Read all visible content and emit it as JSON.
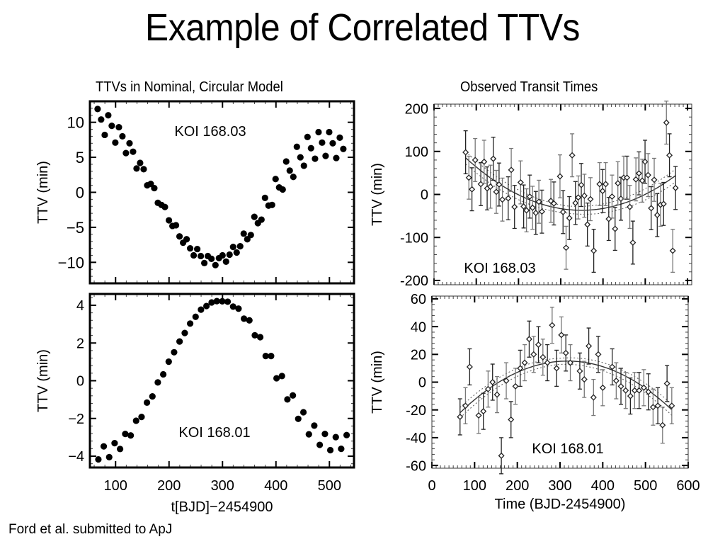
{
  "slide": {
    "title": "Example of Correlated TTVs",
    "left_heading": "TTVs in Nominal, Circular Model",
    "right_heading": "Observed Transit Times",
    "footer": "Ford et al. submitted to ApJ"
  },
  "chart_data": [
    {
      "id": "model-koi-168-03",
      "type": "scatter",
      "title": "",
      "annotation": "KOI 168.03",
      "xlabel": "",
      "ylabel": "TTV (min)",
      "xlim": [
        52,
        546
      ],
      "ylim": [
        -13,
        13
      ],
      "yticks": [
        -10,
        -5,
        0,
        5,
        10
      ],
      "ytick_labels": [
        "−10",
        "−5",
        "0",
        "5",
        "10"
      ],
      "xticks": [
        100,
        200,
        300,
        400,
        500
      ],
      "xtick_labels": [],
      "x": [
        66.4,
        73.0,
        79.7,
        86.3,
        92.9,
        99.5,
        106.2,
        112.8,
        119.4,
        126.1,
        132.7,
        139.3,
        145.9,
        152.6,
        159.2,
        165.8,
        172.4,
        179.1,
        185.7,
        192.3,
        199.8,
        206.4,
        213.0,
        219.6,
        226.3,
        232.9,
        239.5,
        246.1,
        252.8,
        259.4,
        266.0,
        272.6,
        279.3,
        286.8,
        293.4,
        300.0,
        306.6,
        313.2,
        319.9,
        326.5,
        333.1,
        339.7,
        346.4,
        353.0,
        359.6,
        366.2,
        372.9,
        379.5,
        386.1,
        392.7,
        399.3,
        406.0,
        412.6,
        419.2,
        425.8,
        432.5,
        439.1,
        445.7,
        452.3,
        459.0,
        465.6,
        473.1,
        479.7,
        486.3,
        492.9,
        499.6,
        506.2,
        512.8,
        519.4,
        526.0
      ],
      "y": [
        11.9,
        10.4,
        8.2,
        11.0,
        9.5,
        7.1,
        9.3,
        8.0,
        5.6,
        7.0,
        5.8,
        3.4,
        4.2,
        3.3,
        1.0,
        1.2,
        0.6,
        -1.5,
        -1.8,
        -2.1,
        -4.0,
        -4.8,
        -4.7,
        -6.3,
        -7.2,
        -6.7,
        -8.0,
        -9.0,
        -8.1,
        -9.1,
        -10.1,
        -9.1,
        -9.5,
        -10.4,
        -9.4,
        -9.0,
        -9.9,
        -8.9,
        -7.8,
        -8.6,
        -7.7,
        -5.9,
        -6.7,
        -6.1,
        -3.5,
        -4.4,
        -3.9,
        -0.8,
        -1.9,
        -1.8,
        1.9,
        0.7,
        0.4,
        4.4,
        3.1,
        2.2,
        6.5,
        5.0,
        3.8,
        7.9,
        6.3,
        4.8,
        8.6,
        7.1,
        5.2,
        8.6,
        7.0,
        4.9,
        7.8,
        6.2
      ]
    },
    {
      "id": "model-koi-168-01",
      "type": "scatter",
      "title": "",
      "annotation": "KOI 168.01",
      "xlabel": "t[BJD]−2454900",
      "ylabel": "TTV (min)",
      "xlim": [
        52,
        546
      ],
      "ylim": [
        -4.6,
        4.6
      ],
      "yticks": [
        -4,
        -2,
        0,
        2,
        4
      ],
      "ytick_labels": [
        "−4",
        "−2",
        "0",
        "2",
        "4"
      ],
      "xticks": [
        100,
        200,
        300,
        400,
        500
      ],
      "xtick_labels": [
        "100",
        "200",
        "300",
        "400",
        "500"
      ],
      "x": [
        67.8,
        77.9,
        88.1,
        98.2,
        108.4,
        118.1,
        128.3,
        138.4,
        148.6,
        158.7,
        168.9,
        179.0,
        189.2,
        199.4,
        209.5,
        219.7,
        229.4,
        239.5,
        249.7,
        259.8,
        270.0,
        279.7,
        289.4,
        299.6,
        309.7,
        319.9,
        330.0,
        340.2,
        350.3,
        360.5,
        370.6,
        380.8,
        390.9,
        401.1,
        411.2,
        421.4,
        431.6,
        441.7,
        451.4,
        461.6,
        471.7,
        481.9,
        491.6,
        501.7,
        511.9,
        522.0,
        532.2
      ],
      "y": [
        -4.17,
        -3.48,
        -4.05,
        -3.31,
        -3.62,
        -2.82,
        -2.9,
        -2.12,
        -1.92,
        -1.16,
        -0.83,
        -0.09,
        0.34,
        1.01,
        1.51,
        2.08,
        2.53,
        3.03,
        3.39,
        3.77,
        3.96,
        4.15,
        4.22,
        4.21,
        4.19,
        3.93,
        3.82,
        3.29,
        3.2,
        2.41,
        2.31,
        1.31,
        1.31,
        0.13,
        0.25,
        -0.99,
        -0.78,
        -2.02,
        -1.67,
        -2.84,
        -2.38,
        -3.4,
        -2.82,
        -3.68,
        -2.99,
        -3.61,
        -2.88
      ]
    },
    {
      "id": "observed-koi-168-03",
      "type": "scatter",
      "title": "",
      "annotation": "KOI 168.03",
      "xlabel": "",
      "ylabel": "TTV (min)",
      "xlim": [
        0,
        610
      ],
      "ylim": [
        -210,
        210
      ],
      "yticks": [
        -200,
        -100,
        0,
        100,
        200
      ],
      "ytick_labels": [
        "-200",
        "-100",
        "0",
        "100",
        "200"
      ],
      "xticks": [
        0,
        100,
        200,
        300,
        400,
        500,
        600
      ],
      "xtick_labels": [],
      "x": [
        74.8,
        82.5,
        89.8,
        97.5,
        110.8,
        118.6,
        125.8,
        133.5,
        140.2,
        147.4,
        154.0,
        161.8,
        175.6,
        182.8,
        190.6,
        205.0,
        212.2,
        218.9,
        226.6,
        233.3,
        241.0,
        248.2,
        255.4,
        276.6,
        283.8,
        298.2,
        305.4,
        312.6,
        320.4,
        327.0,
        334.8,
        341.4,
        348.6,
        355.9,
        363.1,
        370.3,
        378.1,
        391.9,
        399.1,
        406.4,
        413.6,
        421.4,
        428.6,
        435.2,
        442.4,
        449.1,
        456.8,
        463.5,
        470.7,
        477.9,
        485.1,
        492.9,
        499.5,
        506.7,
        514.0,
        521.2,
        528.4,
        536.2,
        543.4,
        550.1,
        557.3,
        565.1,
        571.7
      ],
      "y": [
        98,
        39,
        12,
        80,
        24,
        76,
        14,
        18,
        83,
        6,
        23,
        -12,
        -9,
        57,
        -29,
        28,
        -28,
        -37,
        -5,
        -31,
        -43,
        -17,
        -40,
        -15,
        -21,
        42,
        -41,
        -124,
        -55,
        91,
        -20,
        -7,
        22,
        -3,
        -70,
        -11,
        -131,
        24,
        8,
        24,
        -57,
        -5,
        -80,
        26,
        -10,
        39,
        39,
        -29,
        -112,
        35,
        49,
        32,
        76,
        45,
        -32,
        34,
        -48,
        -24,
        -22,
        167,
        91,
        -131,
        15
      ],
      "yerr": 50,
      "fit": {
        "type": "quadratic",
        "x": [
          75,
          315,
          572
        ],
        "y": [
          85,
          -35,
          44
        ],
        "band_lower_offset": 15,
        "band_upper_offset": 15
      }
    },
    {
      "id": "observed-koi-168-01",
      "type": "scatter",
      "title": "",
      "annotation": "KOI 168.01",
      "xlabel": "Time (BJD-2454900)",
      "ylabel": "TTV (min)",
      "xlim": [
        0,
        600
      ],
      "ylim": [
        -62,
        62
      ],
      "yticks": [
        -60,
        -40,
        -20,
        0,
        20,
        40,
        60
      ],
      "ytick_labels": [
        "-60",
        "-40",
        "-20",
        "0",
        "20",
        "40",
        "60"
      ],
      "xticks": [
        0,
        100,
        200,
        300,
        400,
        500,
        600
      ],
      "xtick_labels": [
        "0",
        "100",
        "200",
        "300",
        "400",
        "500",
        "600"
      ],
      "x": [
        65.9,
        78.6,
        88.5,
        109.5,
        120.5,
        131.6,
        142.1,
        152.6,
        162.6,
        174.1,
        185.2,
        195.7,
        206.8,
        217.3,
        227.8,
        238.3,
        249.4,
        259.9,
        270.4,
        281.5,
        292.0,
        303.1,
        313.6,
        324.1,
        346.3,
        356.8,
        367.3,
        378.4,
        389.5,
        400.0,
        422.1,
        431.5,
        442.6,
        453.7,
        464.7,
        474.7,
        485.2,
        496.2,
        506.8,
        517.8,
        528.9,
        540.0,
        550.5,
        561.6
      ],
      "y": [
        -25,
        -17,
        11,
        -24,
        -21,
        -5,
        0,
        -9,
        -53,
        1,
        -27,
        -3,
        10,
        14,
        31,
        20,
        27,
        18,
        14,
        41,
        10,
        34,
        21,
        14,
        8,
        2,
        26,
        -11,
        20,
        -4,
        11,
        1,
        -3,
        -6,
        -10,
        -6,
        -6,
        -4,
        -7,
        -18,
        -17,
        -31,
        -1,
        -17
      ],
      "yerr": 13,
      "fit": {
        "type": "quadratic",
        "x": [
          66,
          300,
          562
        ],
        "y": [
          -22,
          15,
          -20
        ],
        "band_lower_offset": 4,
        "band_upper_offset": 4
      }
    }
  ]
}
